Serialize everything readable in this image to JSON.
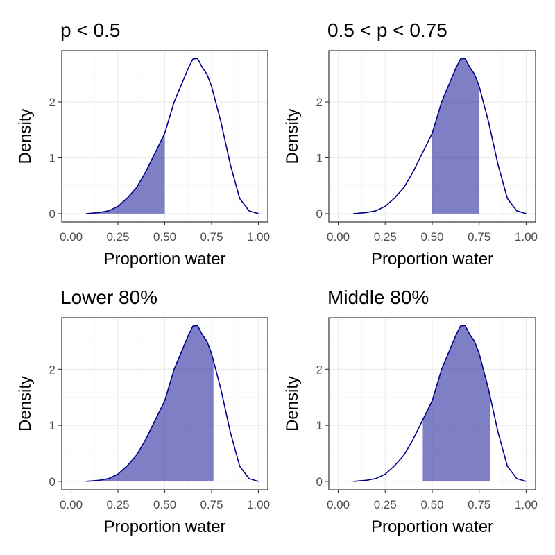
{
  "colors": {
    "line": "#00008b",
    "fill": "#00008b",
    "fill_opacity": 0.5
  },
  "chart_data": [
    {
      "type": "area",
      "title": "p < 0.5",
      "xlabel": "Proportion water",
      "ylabel": "Density",
      "xlim": [
        0,
        1
      ],
      "ylim": [
        0,
        2.9
      ],
      "xticks": [
        "0.00",
        "0.25",
        "0.50",
        "0.75",
        "1.00"
      ],
      "yticks": [
        "0",
        "1",
        "2"
      ],
      "grid": true,
      "shade": [
        0.0,
        0.5
      ],
      "curve": {
        "x": [
          0.08,
          0.1,
          0.15,
          0.2,
          0.25,
          0.3,
          0.35,
          0.4,
          0.45,
          0.5,
          0.55,
          0.6,
          0.625,
          0.65,
          0.675,
          0.7,
          0.725,
          0.75,
          0.8,
          0.85,
          0.9,
          0.95,
          1.0
        ],
        "y": [
          0,
          0.005,
          0.02,
          0.05,
          0.13,
          0.28,
          0.47,
          0.76,
          1.1,
          1.44,
          2.0,
          2.4,
          2.6,
          2.77,
          2.78,
          2.62,
          2.5,
          2.28,
          1.64,
          0.88,
          0.27,
          0.05,
          0
        ]
      }
    },
    {
      "type": "area",
      "title": "0.5 < p < 0.75",
      "xlabel": "Proportion water",
      "ylabel": "Density",
      "xlim": [
        0,
        1
      ],
      "ylim": [
        0,
        2.9
      ],
      "xticks": [
        "0.00",
        "0.25",
        "0.50",
        "0.75",
        "1.00"
      ],
      "yticks": [
        "0",
        "1",
        "2"
      ],
      "grid": true,
      "shade": [
        0.5,
        0.75
      ],
      "curve": {
        "x": [
          0.08,
          0.1,
          0.15,
          0.2,
          0.25,
          0.3,
          0.35,
          0.4,
          0.45,
          0.5,
          0.55,
          0.6,
          0.625,
          0.65,
          0.675,
          0.7,
          0.725,
          0.75,
          0.8,
          0.85,
          0.9,
          0.95,
          1.0
        ],
        "y": [
          0,
          0.005,
          0.02,
          0.05,
          0.13,
          0.28,
          0.47,
          0.76,
          1.1,
          1.44,
          2.0,
          2.4,
          2.6,
          2.77,
          2.78,
          2.62,
          2.5,
          2.28,
          1.64,
          0.88,
          0.27,
          0.05,
          0
        ]
      }
    },
    {
      "type": "area",
      "title": "Lower 80%",
      "xlabel": "Proportion water",
      "ylabel": "Density",
      "xlim": [
        0,
        1
      ],
      "ylim": [
        0,
        2.9
      ],
      "xticks": [
        "0.00",
        "0.25",
        "0.50",
        "0.75",
        "1.00"
      ],
      "yticks": [
        "0",
        "1",
        "2"
      ],
      "grid": true,
      "shade": [
        0.0,
        0.76
      ],
      "curve": {
        "x": [
          0.08,
          0.1,
          0.15,
          0.2,
          0.25,
          0.3,
          0.35,
          0.4,
          0.45,
          0.5,
          0.55,
          0.6,
          0.625,
          0.65,
          0.675,
          0.7,
          0.725,
          0.75,
          0.8,
          0.85,
          0.9,
          0.95,
          1.0
        ],
        "y": [
          0,
          0.005,
          0.02,
          0.05,
          0.13,
          0.28,
          0.47,
          0.76,
          1.1,
          1.44,
          2.0,
          2.4,
          2.6,
          2.77,
          2.78,
          2.62,
          2.5,
          2.28,
          1.64,
          0.88,
          0.27,
          0.05,
          0
        ]
      }
    },
    {
      "type": "area",
      "title": "Middle 80%",
      "xlabel": "Proportion water",
      "ylabel": "Density",
      "xlim": [
        0,
        1
      ],
      "ylim": [
        0,
        2.9
      ],
      "xticks": [
        "0.00",
        "0.25",
        "0.50",
        "0.75",
        "1.00"
      ],
      "yticks": [
        "0",
        "1",
        "2"
      ],
      "grid": true,
      "shade": [
        0.45,
        0.81
      ],
      "curve": {
        "x": [
          0.08,
          0.1,
          0.15,
          0.2,
          0.25,
          0.3,
          0.35,
          0.4,
          0.45,
          0.5,
          0.55,
          0.6,
          0.625,
          0.65,
          0.675,
          0.7,
          0.725,
          0.75,
          0.8,
          0.85,
          0.9,
          0.95,
          1.0
        ],
        "y": [
          0,
          0.005,
          0.02,
          0.05,
          0.13,
          0.28,
          0.47,
          0.76,
          1.1,
          1.44,
          2.0,
          2.4,
          2.6,
          2.77,
          2.78,
          2.62,
          2.5,
          2.28,
          1.64,
          0.88,
          0.27,
          0.05,
          0
        ]
      }
    }
  ]
}
